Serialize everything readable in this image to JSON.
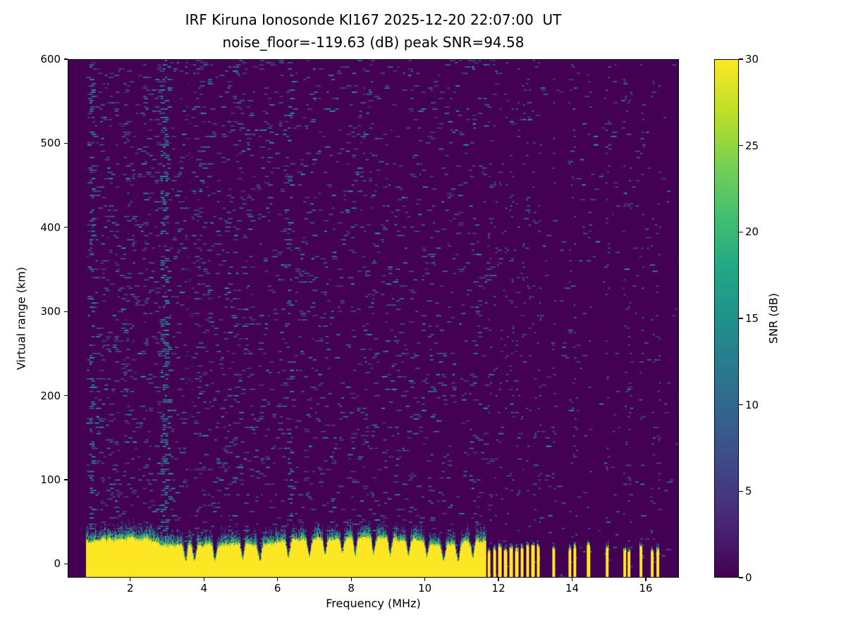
{
  "figure": {
    "title_line1": "IRF Kiruna Ionosonde KI167 2025-12-20 22:07:00  UT",
    "title_line2": "noise_floor=-119.63 (dB) peak SNR=94.58"
  },
  "axes": {
    "xlabel": "Frequency (MHz)",
    "ylabel": "Virtual range (km)",
    "x_ticks": [
      2,
      4,
      6,
      8,
      10,
      12,
      14,
      16
    ],
    "y_ticks": [
      0,
      100,
      200,
      300,
      400,
      500,
      600
    ],
    "xlim": [
      0.3,
      16.9
    ],
    "ylim": [
      -16.5,
      600
    ]
  },
  "colorbar": {
    "label": "SNR (dB)",
    "ticks": [
      0,
      5,
      10,
      15,
      20,
      25,
      30
    ],
    "min": 0,
    "max": 30,
    "colormap": "viridis",
    "stops": [
      [
        0,
        "#440154"
      ],
      [
        0.1,
        "#482475"
      ],
      [
        0.2,
        "#414487"
      ],
      [
        0.3,
        "#355f8d"
      ],
      [
        0.4,
        "#2a788e"
      ],
      [
        0.5,
        "#21918c"
      ],
      [
        0.6,
        "#22a884"
      ],
      [
        0.7,
        "#44bf70"
      ],
      [
        0.8,
        "#7ad151"
      ],
      [
        0.9,
        "#bddf26"
      ],
      [
        1,
        "#fde725"
      ]
    ]
  },
  "chart_data": {
    "type": "heatmap",
    "title": "IRF Kiruna Ionosonde KI167 2025-12-20 22:07:00  UT",
    "subtitle": "noise_floor=-119.63 (dB) peak SNR=94.58",
    "xlabel": "Frequency (MHz)",
    "ylabel": "Virtual range (km)",
    "zlabel": "SNR (dB)",
    "xlim": [
      0.3,
      16.9
    ],
    "ylim": [
      -16.5,
      600
    ],
    "zlim": [
      0,
      30
    ],
    "colormap": "viridis",
    "noise_floor_db": -119.63,
    "peak_snr_db": 94.58,
    "observations": {
      "ground_return_band": {
        "freq_range_mhz": [
          0.78,
          11.65
        ],
        "virtual_range_km": [
          -16,
          30
        ],
        "snr": "saturated, >=30 dB (yellow), teal transition cap up to ~45 km"
      },
      "intermittent_band_above_11_65_mhz": "yellow band breaks into discrete frequency pulses separated by gaps, becoming sparser toward 16.4 MHz",
      "background": "dark purple ~0-2 dB with scattered 3-12 dB noise speckles over full 0-600 km range, denser below ~6 MHz",
      "vertical_interference_streaks_mhz": [
        0.92,
        2.86,
        2.98,
        6.3
      ],
      "attenuation_notches_mhz": [
        3.48,
        3.72,
        4.28,
        5.04,
        5.5,
        6.28,
        6.85,
        7.28,
        7.75,
        8.1,
        8.6,
        9.05,
        9.55,
        10.05,
        10.5,
        10.9,
        11.3
      ],
      "no_ionospheric_echo_traces": true
    },
    "render": {
      "seed": 20251220,
      "background": "#440154",
      "yellow": "#fde725",
      "data_start_freq": 0.78,
      "band": {
        "freq_end": 11.65,
        "top_km": 26,
        "notches": [
          3.48,
          3.72,
          4.28,
          5.04,
          5.5,
          6.28,
          6.85,
          7.28,
          7.75,
          8.1,
          8.6,
          9.05,
          9.55,
          10.05,
          10.5,
          10.9,
          11.3
        ],
        "notch_sigma": 0.04,
        "notch_depth_km": 20,
        "cap_colors": [
          "#5ec962",
          "#28ae80",
          "#21918c",
          "#2a788e",
          "#355f8d",
          "#414487"
        ]
      },
      "pulses": [
        [
          11.74,
          0.07
        ],
        [
          11.89,
          0.07
        ],
        [
          12.04,
          0.08
        ],
        [
          12.19,
          0.07
        ],
        [
          12.34,
          0.07
        ],
        [
          12.49,
          0.08
        ],
        [
          12.64,
          0.07
        ],
        [
          12.79,
          0.06
        ],
        [
          12.94,
          0.07
        ],
        [
          13.08,
          0.06
        ],
        [
          13.5,
          0.05
        ],
        [
          13.95,
          0.06
        ],
        [
          14.06,
          0.04
        ],
        [
          14.45,
          0.07
        ],
        [
          14.95,
          0.05
        ],
        [
          15.43,
          0.06
        ],
        [
          15.55,
          0.04
        ],
        [
          15.88,
          0.05
        ],
        [
          16.18,
          0.06
        ],
        [
          16.33,
          0.05
        ]
      ],
      "noise": {
        "colors": [
          "#46327e",
          "#414487",
          "#3b528b",
          "#355f8d",
          "#2a788e",
          "#21918c"
        ],
        "weights": [
          0.3,
          0.24,
          0.18,
          0.14,
          0.09,
          0.05
        ],
        "density_low_freq": 0.105,
        "density_high_freq": 0.055,
        "density_beyond_band": 0.016
      },
      "streaks": [
        {
          "freq": 0.92,
          "width": 0.1,
          "density": 0.2
        },
        {
          "freq": 2.86,
          "width": 0.12,
          "density": 0.2
        },
        {
          "freq": 2.98,
          "width": 0.06,
          "density": 0.12
        },
        {
          "freq": 6.3,
          "width": 0.05,
          "density": 0.08
        }
      ],
      "streak_colors": [
        "#2a788e",
        "#21918c",
        "#31688e",
        "#267f8e"
      ],
      "dim_stripes": [
        {
          "freq": 3.6,
          "width": 0.14,
          "alpha": 0.7
        }
      ],
      "pulse_column_noise_density": 0.09,
      "pulse_column_colors": [
        "#414487",
        "#3b528b",
        "#355f8d"
      ]
    }
  }
}
